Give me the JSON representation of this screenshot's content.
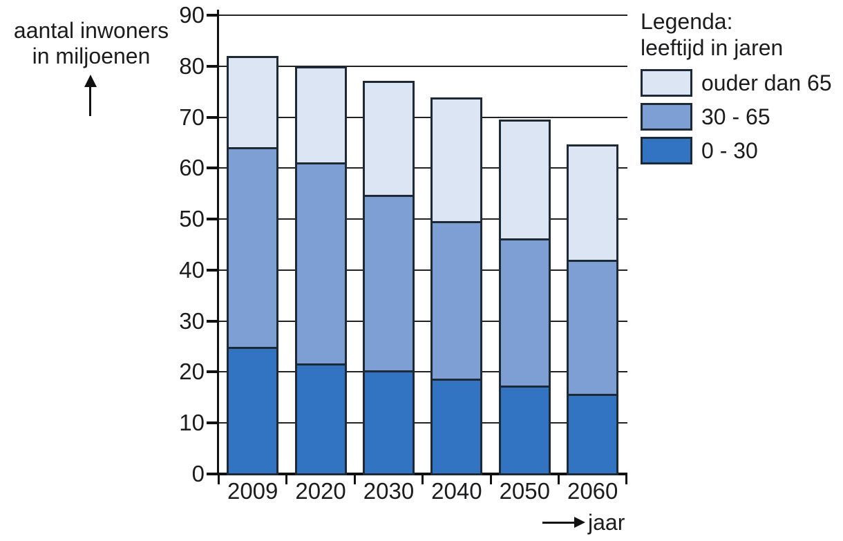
{
  "figure": {
    "y_axis_title_line1": "aantal inwoners",
    "y_axis_title_line2": "in miljoenen",
    "x_axis_label": "jaar"
  },
  "legend": {
    "title_line1": "Legenda:",
    "title_line2": "leeftijd in jaren",
    "items": [
      {
        "label": "ouder dan 65",
        "color": "#dbe5f4"
      },
      {
        "label": "30 - 65",
        "color": "#7e9fd4"
      },
      {
        "label": "0 - 30",
        "color": "#3273c2"
      }
    ]
  },
  "chart_data": {
    "type": "bar",
    "stacked": true,
    "categories": [
      "2009",
      "2020",
      "2030",
      "2040",
      "2050",
      "2060"
    ],
    "series": [
      {
        "name": "0 - 30",
        "color": "#3273c2",
        "values": [
          24.8,
          21.5,
          20.2,
          18.5,
          17.1,
          15.5
        ]
      },
      {
        "name": "30 - 65",
        "color": "#7e9fd4",
        "values": [
          39.4,
          39.7,
          34.6,
          31.0,
          29.1,
          26.5
        ]
      },
      {
        "name": "ouder dan 65",
        "color": "#dbe5f4",
        "values": [
          17.8,
          18.7,
          22.3,
          24.4,
          23.3,
          22.7
        ]
      }
    ],
    "totals": [
      82.0,
      79.9,
      77.1,
      73.9,
      69.5,
      64.7
    ],
    "xlabel": "jaar",
    "ylabel": "aantal inwoners in miljoenen",
    "ylim": [
      0,
      90
    ],
    "ytick_step": 10,
    "grid": true,
    "legend_position": "top-right",
    "legend_title": "Legenda: leeftijd in jaren"
  },
  "axes": {
    "y_ticks": [
      "0",
      "10",
      "20",
      "30",
      "40",
      "50",
      "60",
      "70",
      "80",
      "90"
    ]
  }
}
